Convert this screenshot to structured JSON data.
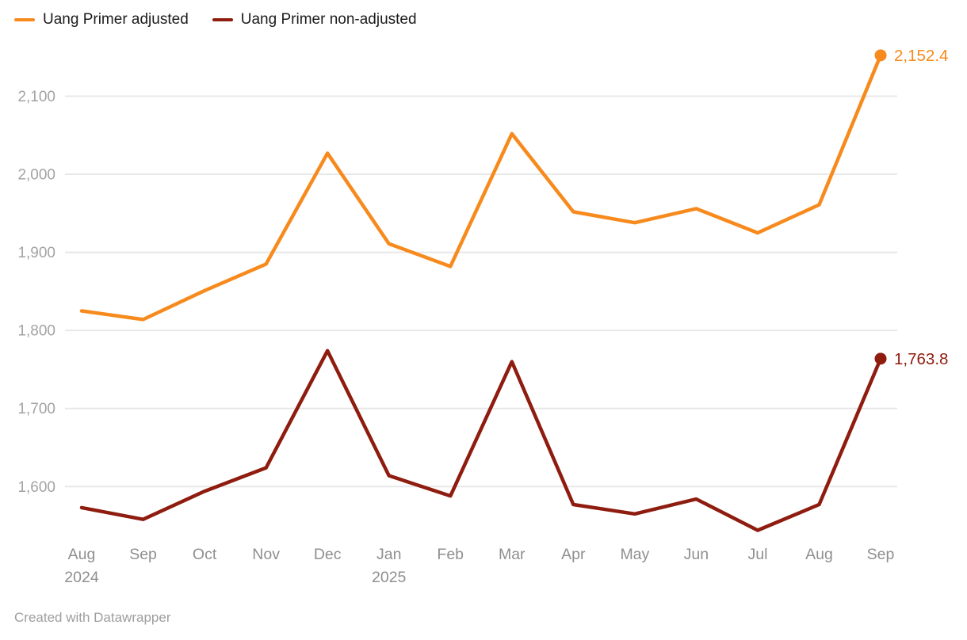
{
  "page": {
    "background": "#ffffff"
  },
  "legend": {
    "position": "top-left"
  },
  "footer": {
    "text": "Created with Datawrapper"
  },
  "colors": {
    "adjusted": "#f78a1d",
    "non_adjusted": "#8e1c0f",
    "gridline": "#e8e8e8",
    "y_tick_text": "#a3a3a3",
    "x_tick_text": "#8f8f8f",
    "legend_text": "#1c1c1c",
    "footer_text": "#9e9e9e"
  },
  "chart_data": {
    "type": "line",
    "title": "",
    "xlabel": "",
    "ylabel": "",
    "grid": "horizontal",
    "legend_position": "top-left",
    "categories": [
      "Aug",
      "Sep",
      "Oct",
      "Nov",
      "Dec",
      "Jan",
      "Feb",
      "Mar",
      "Apr",
      "May",
      "Jun",
      "Jul",
      "Aug",
      "Sep"
    ],
    "year_labels": {
      "0": "2024",
      "5": "2025"
    },
    "series": [
      {
        "name": "Uang Primer adjusted",
        "color": "#f78a1d",
        "values": [
          1825,
          1814,
          1851,
          1885,
          2027,
          1911,
          1882,
          2052,
          1952,
          1938,
          1956,
          1925,
          1961,
          2152.4
        ],
        "end_label": "2,152.4"
      },
      {
        "name": "Uang Primer non-adjusted",
        "color": "#8e1c0f",
        "values": [
          1573,
          1558,
          1594,
          1624,
          1774,
          1614,
          1588,
          1760,
          1577,
          1565,
          1584,
          1544,
          1577,
          1763.8
        ],
        "end_label": "1,763.8"
      }
    ],
    "yticks": [
      {
        "value": 1600,
        "label": "1,600"
      },
      {
        "value": 1700,
        "label": "1,700"
      },
      {
        "value": 1800,
        "label": "1,800"
      },
      {
        "value": 1900,
        "label": "1,900"
      },
      {
        "value": 2000,
        "label": "2,000"
      },
      {
        "value": 2100,
        "label": "2,100"
      }
    ],
    "ylim": [
      1540,
      2160
    ],
    "attribution": "Created with Datawrapper"
  }
}
